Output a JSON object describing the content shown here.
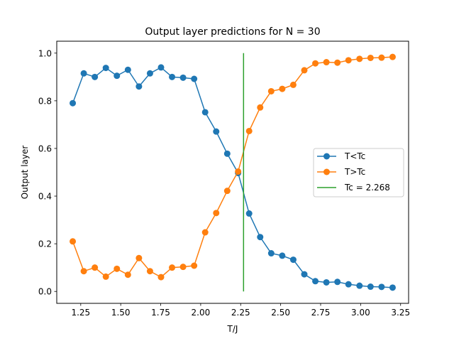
{
  "chart_data": {
    "type": "line",
    "title": "Output layer predictions for N = 30",
    "xlabel": "T/J",
    "ylabel": "Output layer",
    "xlim": [
      1.1,
      3.3
    ],
    "ylim": [
      -0.05,
      1.05
    ],
    "xticks": [
      1.25,
      1.5,
      1.75,
      2.0,
      2.25,
      2.5,
      2.75,
      3.0,
      3.25
    ],
    "xtick_labels": [
      "1.25",
      "1.50",
      "1.75",
      "2.00",
      "2.25",
      "2.50",
      "2.75",
      "3.00",
      "3.25"
    ],
    "yticks": [
      0.0,
      0.2,
      0.4,
      0.6,
      0.8,
      1.0
    ],
    "ytick_labels": [
      "0.0",
      "0.2",
      "0.4",
      "0.6",
      "0.8",
      "1.0"
    ],
    "grid": false,
    "legend_position": "center-right",
    "x": [
      1.2,
      1.269,
      1.338,
      1.407,
      1.476,
      1.545,
      1.614,
      1.683,
      1.752,
      1.821,
      1.89,
      1.959,
      2.028,
      2.097,
      2.166,
      2.234,
      2.303,
      2.372,
      2.441,
      2.51,
      2.579,
      2.648,
      2.717,
      2.786,
      2.855,
      2.924,
      2.993,
      3.062,
      3.131,
      3.2
    ],
    "series": [
      {
        "name": "T<Tc",
        "color": "#1f77b4",
        "values": [
          0.79,
          0.915,
          0.9,
          0.938,
          0.905,
          0.93,
          0.86,
          0.915,
          0.94,
          0.9,
          0.897,
          0.892,
          0.752,
          0.671,
          0.578,
          0.497,
          0.327,
          0.228,
          0.16,
          0.15,
          0.133,
          0.072,
          0.043,
          0.038,
          0.04,
          0.03,
          0.024,
          0.02,
          0.019,
          0.016
        ]
      },
      {
        "name": "T>Tc",
        "color": "#ff7f0e",
        "values": [
          0.21,
          0.085,
          0.1,
          0.062,
          0.095,
          0.07,
          0.14,
          0.085,
          0.06,
          0.1,
          0.103,
          0.108,
          0.248,
          0.329,
          0.422,
          0.503,
          0.673,
          0.772,
          0.84,
          0.85,
          0.867,
          0.928,
          0.957,
          0.962,
          0.96,
          0.97,
          0.976,
          0.98,
          0.981,
          0.984
        ]
      }
    ],
    "vline": {
      "name": "Tc = 2.268",
      "x": 2.268,
      "y0": 0.0,
      "y1": 1.0,
      "color": "#2ca02c"
    }
  }
}
